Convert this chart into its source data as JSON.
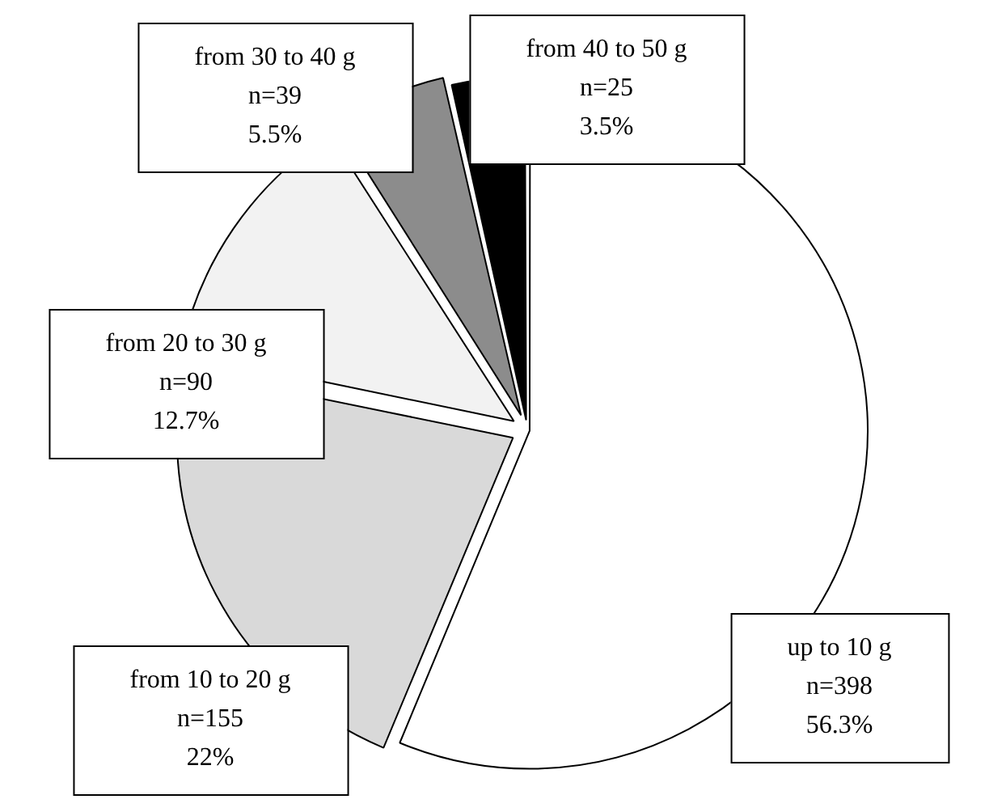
{
  "chart_data": {
    "type": "pie",
    "categories": [
      "up to 10 g",
      "from 10 to 20 g",
      "from 20 to 30 g",
      "from 30 to 40 g",
      "from 40 to 50 g"
    ],
    "values": [
      398,
      155,
      90,
      39,
      25
    ],
    "value_labels": [
      "n=398\n56.3%",
      "n=155\n22%",
      "n=90\n12.7%",
      "n=39\n5.5%",
      "n=25\n3.5%"
    ],
    "colors": [
      "#ffffff",
      "#d9d9d9",
      "#f2f2f2",
      "#8c8c8c",
      "#000000"
    ],
    "legend": false
  }
}
